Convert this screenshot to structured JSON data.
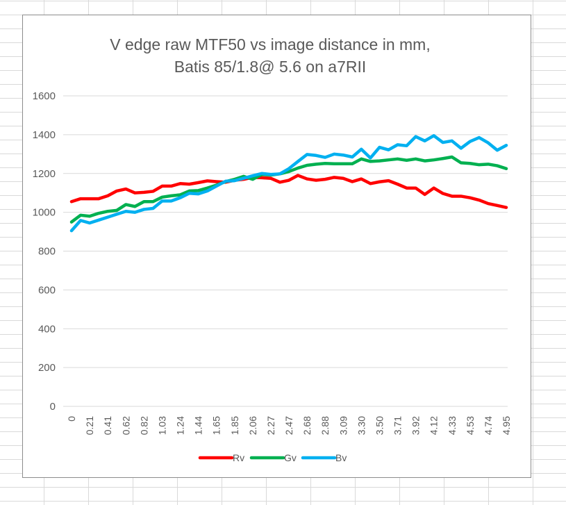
{
  "chart_data": {
    "type": "line",
    "title": [
      "V edge raw MTF50 vs image distance in mm,",
      "Batis 85/1.8@ 5.6 on a7RII"
    ],
    "xlabel": "",
    "ylabel": "",
    "ylim": [
      0,
      1600
    ],
    "yticks": [
      0,
      200,
      400,
      600,
      800,
      1000,
      1200,
      1400,
      1600
    ],
    "grid": true,
    "legend_position": "bottom",
    "x": [
      "0",
      "0.10",
      "0.21",
      "0.31",
      "0.41",
      "0.52",
      "0.62",
      "0.72",
      "0.82",
      "0.93",
      "1.03",
      "1.13",
      "1.24",
      "1.34",
      "1.44",
      "1.55",
      "1.65",
      "1.75",
      "1.85",
      "1.96",
      "2.06",
      "2.16",
      "2.27",
      "2.37",
      "2.47",
      "2.58",
      "2.68",
      "2.78",
      "2.88",
      "2.99",
      "3.09",
      "3.19",
      "3.30",
      "3.40",
      "3.50",
      "3.61",
      "3.71",
      "3.81",
      "3.92",
      "4.02",
      "4.12",
      "4.23",
      "4.33",
      "4.43",
      "4.53",
      "4.64",
      "4.74",
      "4.84",
      "4.95"
    ],
    "x_tick_labels": [
      "0",
      "",
      "0.21",
      "",
      "0.41",
      "",
      "0.62",
      "",
      "0.82",
      "",
      "1.03",
      "",
      "1.24",
      "",
      "1.44",
      "",
      "1.65",
      "",
      "1.85",
      "",
      "2.06",
      "",
      "2.27",
      "",
      "2.47",
      "",
      "2.68",
      "",
      "2.88",
      "",
      "3.09",
      "",
      "3.30",
      "",
      "3.50",
      "",
      "3.71",
      "",
      "3.92",
      "",
      "4.12",
      "",
      "4.33",
      "",
      "4.53",
      "",
      "4.74",
      "",
      "4.95"
    ],
    "series": [
      {
        "name": "Rv",
        "color": "#ff0000",
        "values": [
          1055,
          1070,
          1070,
          1070,
          1085,
          1110,
          1120,
          1100,
          1103,
          1108,
          1135,
          1135,
          1148,
          1145,
          1153,
          1162,
          1158,
          1155,
          1165,
          1170,
          1180,
          1178,
          1175,
          1155,
          1165,
          1190,
          1172,
          1165,
          1170,
          1180,
          1175,
          1158,
          1172,
          1148,
          1157,
          1163,
          1145,
          1125,
          1125,
          1092,
          1125,
          1097,
          1083,
          1083,
          1075,
          1063,
          1045,
          1035,
          1025
        ]
      },
      {
        "name": "Gv",
        "color": "#00b050",
        "values": [
          950,
          985,
          980,
          995,
          1005,
          1010,
          1040,
          1030,
          1055,
          1055,
          1078,
          1085,
          1090,
          1110,
          1112,
          1125,
          1140,
          1158,
          1170,
          1185,
          1170,
          1195,
          1192,
          1198,
          1210,
          1228,
          1242,
          1248,
          1252,
          1250,
          1250,
          1250,
          1275,
          1262,
          1265,
          1270,
          1275,
          1268,
          1275,
          1265,
          1270,
          1277,
          1285,
          1255,
          1252,
          1245,
          1248,
          1240,
          1225
        ]
      },
      {
        "name": "Bv",
        "color": "#00b0f0",
        "values": [
          905,
          958,
          945,
          960,
          975,
          990,
          1005,
          1000,
          1015,
          1020,
          1058,
          1058,
          1075,
          1098,
          1095,
          1110,
          1135,
          1160,
          1163,
          1175,
          1188,
          1200,
          1195,
          1198,
          1225,
          1262,
          1298,
          1293,
          1283,
          1300,
          1295,
          1285,
          1325,
          1280,
          1335,
          1322,
          1348,
          1343,
          1390,
          1368,
          1395,
          1360,
          1368,
          1330,
          1365,
          1385,
          1358,
          1320,
          1345
        ]
      }
    ]
  }
}
